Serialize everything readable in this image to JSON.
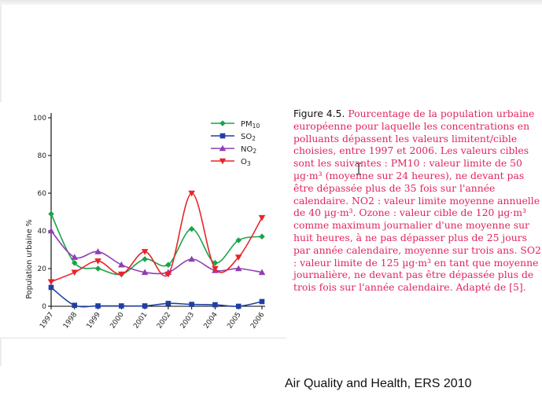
{
  "caption": {
    "figure_label": "Figure 4.5.",
    "text": " Pourcentage de la population urbaine européenne pour laquelle les concentrations en polluants dépassent les valeurs limitent/cible choisies, entre 1997 et 2006. Les valeurs cibles sont les suivantes : PM10 : valeur limite de 50 µg·m³ (moyenne sur 24 heures), ne devant pas être dépassée plus de 35 fois sur l'année calendaire. NO2 : valeur limite moyenne annuelle de 40 µg·m³. Ozone : valeur cible de 120 µg·m³ comme maximum journalier d'une moyenne sur huit heures, à ne pas dépasser plus de 25 jours par année calendaire, moyenne sur trois ans. SO2 : valeur limite de 125 µg·m³ en tant que moyenne journalière, ne devant pas être dépassée plus de trois fois sur l'année calendaire. Adapté de [5]."
  },
  "attribution": "Air Quality and Health, ERS 2010",
  "chart_data": {
    "type": "line",
    "ylabel": "Population urbaine %",
    "xlabel": "",
    "ylim": [
      0,
      100
    ],
    "yticks": [
      0,
      20,
      40,
      60,
      80,
      100
    ],
    "categories": [
      "1997",
      "1998",
      "1999",
      "2000",
      "2001",
      "2002",
      "2003",
      "2004",
      "2005",
      "2006"
    ],
    "legend_position": "top-right",
    "series": [
      {
        "name": "PM10",
        "color": "#1aa34a",
        "marker": "diamond",
        "values": [
          49,
          23,
          20,
          17,
          25,
          22,
          41,
          23,
          35,
          37
        ]
      },
      {
        "name": "SO2",
        "color": "#1f3fa3",
        "marker": "square",
        "values": [
          10,
          0.5,
          0.2,
          0.2,
          0.2,
          1.5,
          1,
          0.8,
          0,
          2.5
        ]
      },
      {
        "name": "NO2",
        "color": "#8e3fb4",
        "marker": "triangle-up",
        "values": [
          40,
          26,
          29,
          22,
          18,
          18,
          25,
          19,
          20,
          18
        ]
      },
      {
        "name": "O3",
        "color": "#e8242a",
        "marker": "triangle-down",
        "values": [
          13,
          18,
          24,
          17,
          29,
          17,
          60,
          20,
          26,
          47
        ]
      }
    ]
  }
}
